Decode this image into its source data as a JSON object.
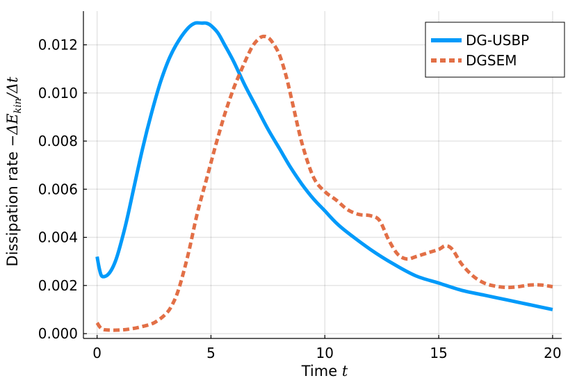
{
  "chart_data": {
    "type": "line",
    "xlabel": "Time t",
    "xlabel_parts": {
      "text": "Time ",
      "var": "t"
    },
    "ylabel": "Dissipation rate −ΔE_kin/Δt",
    "ylabel_parts": {
      "text": "Dissipation rate ",
      "math_pre": "−Δ",
      "var": "E",
      "sub": "kin",
      "math_post": "/Δ",
      "var2": "t"
    },
    "xlim": [
      -0.6,
      20.4
    ],
    "ylim": [
      -0.0002,
      0.0134
    ],
    "xticks": [
      0,
      5,
      10,
      15,
      20
    ],
    "xtick_labels": [
      "0",
      "5",
      "10",
      "15",
      "20"
    ],
    "yticks": [
      0.0,
      0.002,
      0.004,
      0.006,
      0.008,
      0.01,
      0.012
    ],
    "ytick_labels": [
      "0.000",
      "0.002",
      "0.004",
      "0.006",
      "0.008",
      "0.010",
      "0.012"
    ],
    "grid": true,
    "legend_position": "top-right",
    "series": [
      {
        "name": "DG-USBP",
        "color": "#009AFA",
        "style": "solid",
        "x": [
          0.0,
          0.1,
          0.2,
          0.4,
          0.6,
          0.8,
          1.0,
          1.3,
          1.6,
          2.0,
          2.4,
          2.8,
          3.2,
          3.6,
          4.0,
          4.3,
          4.6,
          4.8,
          5.0,
          5.3,
          5.6,
          6.0,
          6.5,
          7.0,
          7.5,
          8.0,
          8.5,
          9.0,
          9.5,
          10.0,
          10.5,
          11.0,
          12.0,
          13.0,
          14.0,
          15.0,
          16.0,
          17.0,
          18.0,
          19.0,
          20.0
        ],
        "y": [
          0.0032,
          0.0027,
          0.0024,
          0.0024,
          0.0026,
          0.003,
          0.0036,
          0.0047,
          0.006,
          0.0077,
          0.0092,
          0.0105,
          0.0115,
          0.0122,
          0.0127,
          0.0129,
          0.0129,
          0.0129,
          0.0128,
          0.0125,
          0.012,
          0.0113,
          0.0103,
          0.0094,
          0.0085,
          0.0077,
          0.0069,
          0.0062,
          0.0056,
          0.0051,
          0.0046,
          0.0042,
          0.0035,
          0.0029,
          0.0024,
          0.0021,
          0.0018,
          0.0016,
          0.0014,
          0.0012,
          0.001
        ]
      },
      {
        "name": "DGSEM",
        "color": "#E26F46",
        "style": "dashed",
        "x": [
          0.0,
          0.2,
          0.5,
          1.0,
          1.5,
          2.0,
          2.5,
          3.0,
          3.3,
          3.6,
          4.0,
          4.4,
          4.8,
          5.2,
          5.6,
          6.0,
          6.4,
          6.8,
          7.1,
          7.3,
          7.5,
          7.7,
          8.0,
          8.3,
          8.6,
          9.0,
          9.5,
          10.0,
          10.5,
          11.0,
          11.5,
          12.0,
          12.4,
          12.8,
          13.2,
          13.6,
          14.0,
          14.5,
          15.0,
          15.3,
          15.6,
          16.0,
          16.5,
          17.0,
          17.5,
          18.0,
          18.5,
          19.0,
          19.5,
          20.0
        ],
        "y": [
          0.00045,
          0.0002,
          0.00015,
          0.00015,
          0.0002,
          0.0003,
          0.00045,
          0.0008,
          0.0012,
          0.0019,
          0.0033,
          0.005,
          0.0064,
          0.0078,
          0.0091,
          0.0102,
          0.0111,
          0.0119,
          0.01225,
          0.01235,
          0.0123,
          0.0121,
          0.0116,
          0.0107,
          0.0095,
          0.0079,
          0.0065,
          0.0059,
          0.00555,
          0.00515,
          0.00495,
          0.0049,
          0.0047,
          0.0039,
          0.0033,
          0.0031,
          0.0032,
          0.00335,
          0.0035,
          0.00365,
          0.0035,
          0.0029,
          0.0024,
          0.0021,
          0.00197,
          0.00192,
          0.00195,
          0.00202,
          0.00202,
          0.00195
        ]
      }
    ]
  }
}
